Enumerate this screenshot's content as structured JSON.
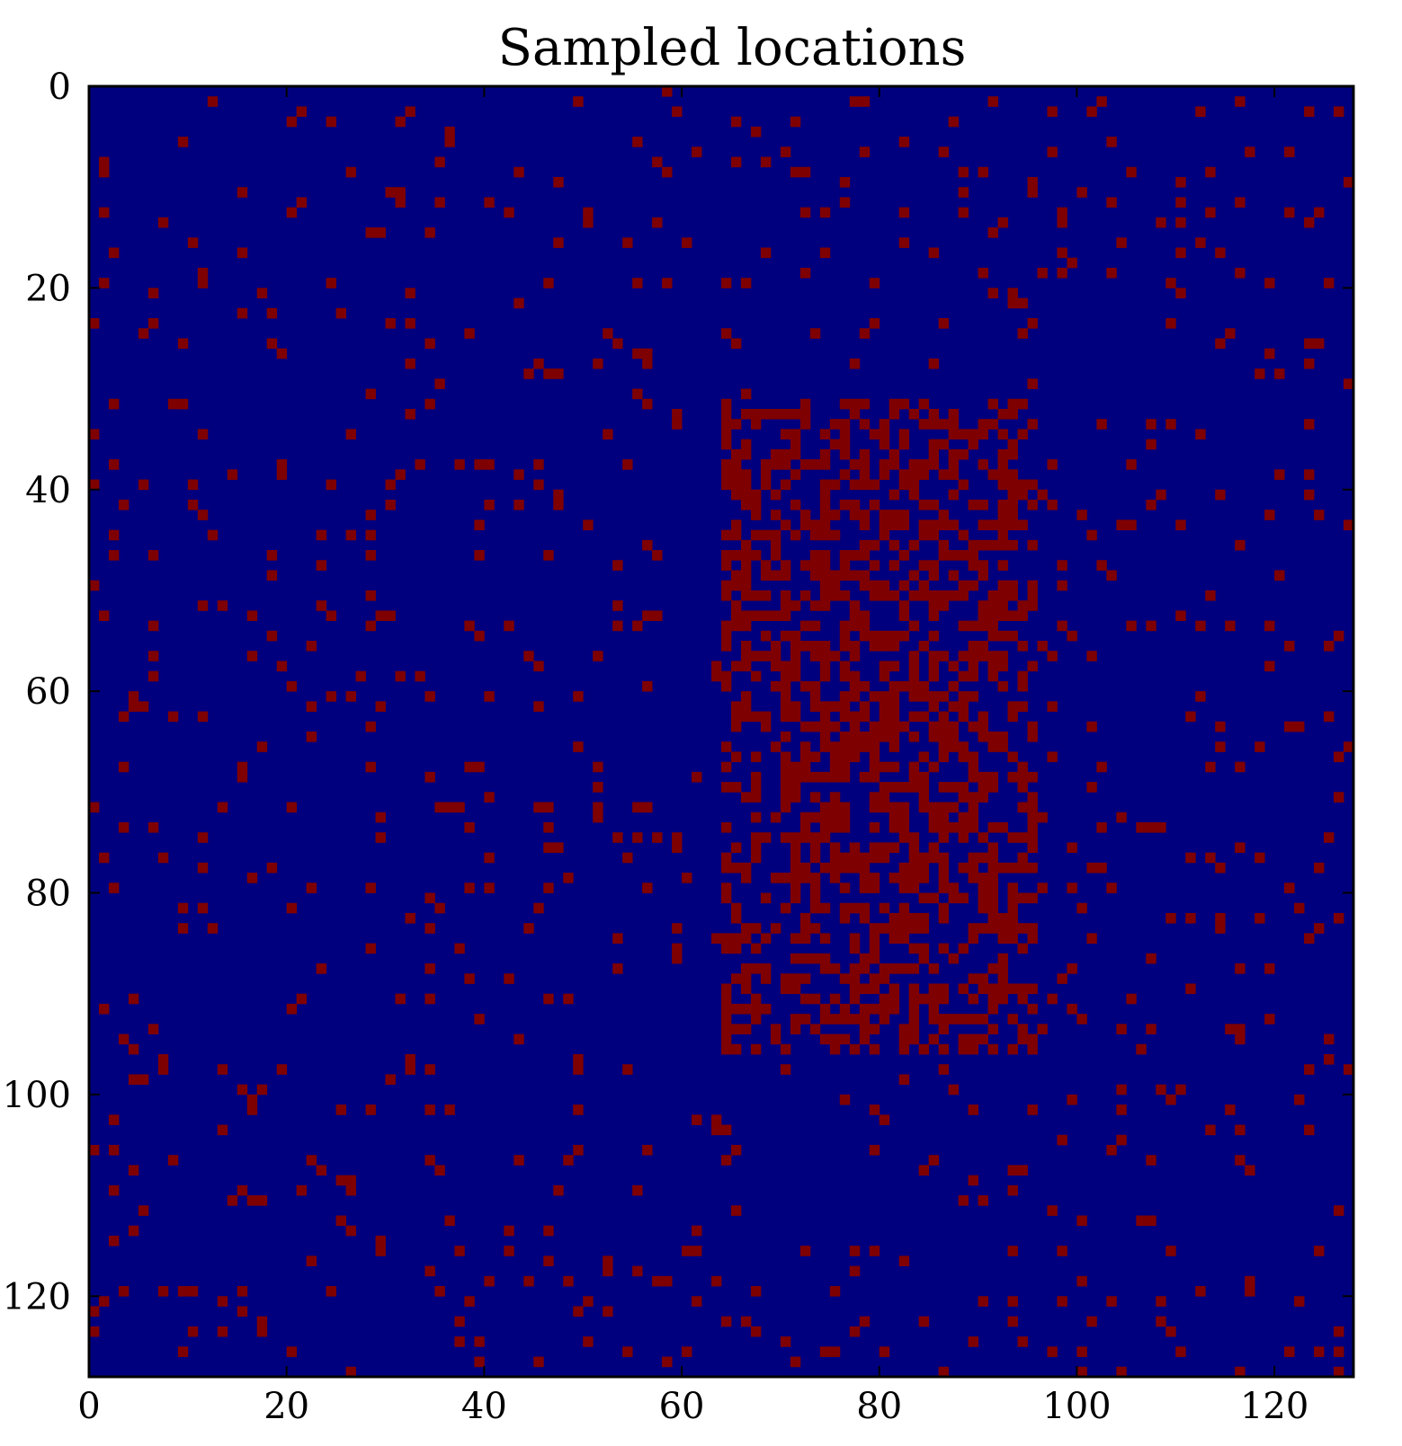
{
  "chart_data": {
    "type": "heatmap",
    "title": "Sampled locations",
    "grid_size": [
      128,
      128
    ],
    "xlim": [
      0,
      128
    ],
    "ylim": [
      128,
      0
    ],
    "x_ticks": [
      0,
      20,
      40,
      60,
      80,
      100,
      120
    ],
    "y_ticks": [
      0,
      20,
      40,
      60,
      80,
      100,
      120
    ],
    "colors": {
      "background": "#00007f",
      "sampled": "#7f0000"
    },
    "sampling": {
      "description_values": true,
      "background_probability": 0.045,
      "dense_region": {
        "x_range": [
          64,
          96
        ],
        "y_range": [
          31,
          96
        ],
        "probability": 0.42
      },
      "core_region": {
        "x_range": [
          70,
          92
        ],
        "y_range": [
          48,
          80
        ],
        "probability": 0.55
      }
    }
  }
}
